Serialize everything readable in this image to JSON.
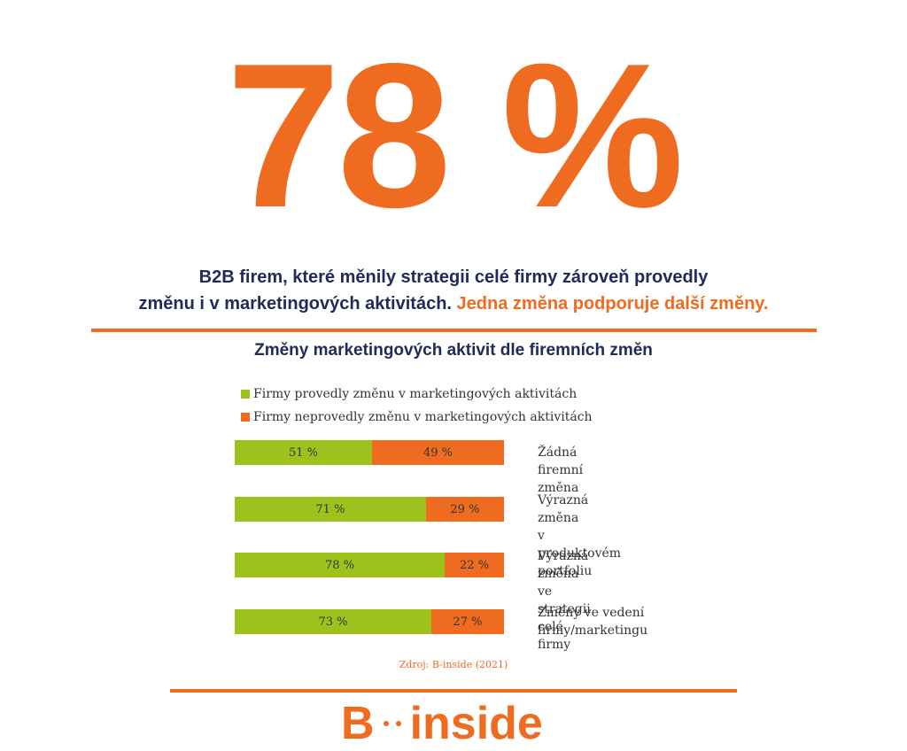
{
  "hero": {
    "value": "78 %"
  },
  "headline": {
    "line1": "B2B firem, které měnily strategii celé firmy zároveň provedly",
    "line2": "změnu i v marketingových aktivitách.",
    "accent": "Jedna změna podporuje další změny."
  },
  "colors": {
    "accent": "#ee6b1f",
    "green": "#9dc21c",
    "navy": "#222a5a"
  },
  "chart_data": {
    "type": "bar",
    "stacked": true,
    "orientation": "horizontal",
    "title": "Změny marketingových aktivit dle firemních změn",
    "legend_position": "top",
    "categories": [
      [
        "Žádná firemní změna"
      ],
      [
        "Výrazná změna",
        "v produktovém portfoliu"
      ],
      [
        "Výrazná změna",
        "ve strategii celé firmy"
      ],
      [
        "Změny ve vedení",
        "firmy/marketingu"
      ]
    ],
    "series": [
      {
        "name": "Firmy provedly změnu v marketingových aktivitách",
        "color": "#9dc21c",
        "values": [
          51,
          71,
          78,
          73
        ],
        "labels": [
          "51 %",
          "71 %",
          "78 %",
          "73 %"
        ]
      },
      {
        "name": "Firmy neprovedly změnu v marketingových aktivitách",
        "color": "#ee6b1f",
        "values": [
          49,
          29,
          22,
          27
        ],
        "labels": [
          "49 %",
          "29 %",
          "22 %",
          "27 %"
        ]
      }
    ],
    "xlim": [
      0,
      100
    ],
    "grid": false
  },
  "source": "Zdroj: B-inside (2021)",
  "logo": {
    "left": "B",
    "right": "inside"
  }
}
